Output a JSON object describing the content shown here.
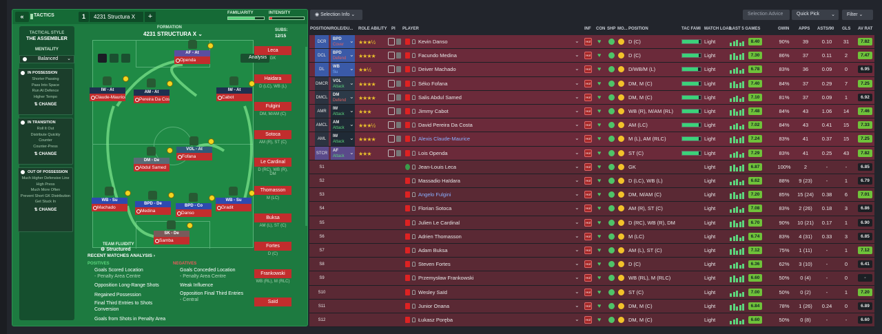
{
  "tabs": {
    "back": "«",
    "label": "TACTICS",
    "num": "1",
    "name": "4231 Structura X",
    "plus": "+"
  },
  "bars": {
    "familiarity": "FAMILIARITY",
    "intensity": "INTENSITY",
    "familiarity_level": 0.75,
    "intensity_level": 0.08
  },
  "sidebar": {
    "title": "TACTICAL STYLE",
    "style": "THE ASSEMBLER",
    "mentality_lbl": "MENTALITY",
    "mentality": "Balanced",
    "in_possession": {
      "head": "IN POSSESSION",
      "items": [
        "Shorter Passing",
        "Pass Into Space",
        "Run At Defence",
        "Higher Tempo"
      ],
      "change": "CHANGE"
    },
    "in_transition": {
      "head": "IN TRANSITION",
      "items": [
        "Roll It Out",
        "Distribute Quickly",
        "Counter",
        "Counter-Press"
      ],
      "change": "CHANGE"
    },
    "out_possession": {
      "head": "OUT OF POSSESSION",
      "items": [
        "Much Higher Defensive Line",
        "High Press",
        "Much More Often",
        "Prevent Short GK Distribution",
        "Get Stuck In"
      ],
      "change": "CHANGE"
    }
  },
  "formation": {
    "lbl": "FORMATION",
    "name": "4231 STRUCTURA X",
    "subs_lbl": "SUBS:",
    "subs": "12/15",
    "analysis": "Analysis",
    "fluidity_lbl": "TEAM FLUIDITY",
    "fluidity": "Structured"
  },
  "pitch_players": [
    {
      "role": "AF - At",
      "name": "Openda"
    },
    {
      "role": "IW - At",
      "name": "Claude-Maurice"
    },
    {
      "role": "AM - At",
      "name": "Pereira Da Costa"
    },
    {
      "role": "IW - At",
      "name": "Cabot"
    },
    {
      "role": "DM - De",
      "name": "Abdul Samed"
    },
    {
      "role": "VOL - At",
      "name": "Fofana"
    },
    {
      "role": "WB - Su",
      "name": "Machado"
    },
    {
      "role": "BPD - De",
      "name": "Medina"
    },
    {
      "role": "BPD - Co",
      "name": "Danso"
    },
    {
      "role": "WB - Su",
      "name": "Gradit"
    },
    {
      "role": "SK - De",
      "name": "Samba"
    }
  ],
  "subs": [
    {
      "name": "Leca",
      "pos": "GK"
    },
    {
      "name": "Haidara",
      "pos": "D (LC), WB (L)"
    },
    {
      "name": "Fulgini",
      "pos": "DM, M/AM (C)"
    },
    {
      "name": "Sotoca",
      "pos": "AM (R), ST (C)"
    },
    {
      "name": "Le Cardinal",
      "pos": "D (RC), WB (R), DM"
    },
    {
      "name": "Thomasson",
      "pos": "M (LC)"
    },
    {
      "name": "Buksa",
      "pos": "AM (L), ST (C)"
    },
    {
      "name": "Fortes",
      "pos": "D (C)"
    },
    {
      "name": "Frankowski",
      "pos": "WB (RL), M (RLC)"
    },
    {
      "name": "Saïd",
      "pos": ""
    }
  ],
  "analysis": {
    "title": "RECENT MATCHES ANALYSIS ›",
    "pos_lbl": "POSITIVES",
    "neg_lbl": "NEGATIVES",
    "positives": [
      {
        "t": "Goals Scored Location",
        "s": "- Penalty Area Centre"
      },
      {
        "t": "Opposition Long-Range Shots",
        "s": ""
      },
      {
        "t": "Regained Possession",
        "s": ""
      },
      {
        "t": "Final Third Entries to Shots Conversion",
        "s": ""
      },
      {
        "t": "Goals from Shots in Penalty Area",
        "s": ""
      }
    ],
    "negatives": [
      {
        "t": "Goals Conceded Location",
        "s": "- Penalty Area Centre"
      },
      {
        "t": "Weak Influence",
        "s": ""
      },
      {
        "t": "Opposition Final Third Entries",
        "s": "- Central"
      }
    ]
  },
  "toolbar": {
    "selection_info": "Selection Info",
    "selection_advice": "Selection Advice",
    "quick_pick": "Quick Pick",
    "filter": "Filter"
  },
  "columns": {
    "pos": "POSITION/ROLE/DU...",
    "role_ability": "ROLE ABILITY",
    "pi": "PI",
    "player": "PLAYER",
    "inf": "INF",
    "con": "CON",
    "shp": "SHP",
    "mo": "MO...",
    "position": "POSITION",
    "tac": "TAC FAMI",
    "ml": "MATCH LOAD",
    "l5": "LAST 5 GAMES",
    "gwin": "GWIN",
    "apps": "APPS",
    "asts": "ASTS/90",
    "gls": "GLS",
    "avr": "AV RAT"
  },
  "rows": [
    {
      "pos": "DCR",
      "role": "BPD",
      "duty": "Cover",
      "stars": "★★★½",
      "name": "Kevin Danso",
      "p": "D (C)",
      "ml": "Light",
      "form": "8.40",
      "gwin": "90%",
      "apps": "39",
      "asts": "0.10",
      "gls": "31",
      "avr": "7.82",
      "fam": 0.9
    },
    {
      "pos": "DCL",
      "role": "BPD",
      "duty": "Defend",
      "stars": "★★★★",
      "name": "Facundo Medina",
      "p": "D (C)",
      "ml": "Light",
      "form": "7.30",
      "gwin": "86%",
      "apps": "37",
      "asts": "0.11",
      "gls": "2",
      "avr": "7.47",
      "fam": 0.9
    },
    {
      "pos": "DL",
      "role": "WB",
      "duty": "Su",
      "stars": "★★½",
      "name": "Deiver Machado",
      "p": "D/WB/M (L)",
      "ml": "Light",
      "form": "6.78",
      "gwin": "83%",
      "apps": "36",
      "asts": "0.09",
      "gls": "0",
      "avr": "6.95",
      "fam": 0.85
    },
    {
      "pos": "DMCR",
      "role": "VOL",
      "duty": "Attack",
      "stars": "★★★★",
      "name": "Séko Fofana",
      "p": "DM, M (C)",
      "ml": "Light",
      "form": "7.40",
      "gwin": "84%",
      "apps": "37",
      "asts": "0.29",
      "gls": "7",
      "avr": "7.25",
      "fam": 0.9
    },
    {
      "pos": "DMCL",
      "role": "DM",
      "duty": "Defend",
      "stars": "★★★★",
      "name": "Salis Abdul Samed",
      "p": "DM, M (C)",
      "ml": "Light",
      "form": "7.10",
      "gwin": "81%",
      "apps": "37",
      "asts": "0.09",
      "gls": "1",
      "avr": "6.92",
      "fam": 0.9
    },
    {
      "pos": "AMR",
      "role": "IW",
      "duty": "Attack",
      "stars": "★★★",
      "name": "Jimmy Cabot",
      "p": "WB (R), M/AM (RL)",
      "ml": "Light",
      "form": "7.48",
      "gwin": "84%",
      "apps": "43",
      "asts": "1.06",
      "gls": "14",
      "avr": "7.46",
      "fam": 0.9
    },
    {
      "pos": "AMCL",
      "role": "AM",
      "duty": "Attack",
      "stars": "★★★½",
      "name": "David Pereira Da Costa",
      "p": "AM (LC)",
      "ml": "Light",
      "form": "7.02",
      "gwin": "84%",
      "apps": "43",
      "asts": "0.41",
      "gls": "15",
      "avr": "7.33",
      "fam": 0.9
    },
    {
      "pos": "AML",
      "role": "IW",
      "duty": "Attack",
      "stars": "★★★★",
      "name": "Alexis Claude-Maurice",
      "p": "M (L), AM (RLC)",
      "ml": "Light",
      "form": "7.24",
      "gwin": "83%",
      "apps": "41",
      "asts": "0.37",
      "gls": "15",
      "avr": "7.25",
      "fam": 0.9
    },
    {
      "pos": "STCR",
      "role": "AF",
      "duty": "Attack",
      "stars": "★★★",
      "name": "Lois Openda",
      "p": "ST (C)",
      "ml": "Light",
      "form": "7.29",
      "gwin": "83%",
      "apps": "41",
      "asts": "0.25",
      "gls": "43",
      "avr": "7.82",
      "fam": 0.9
    },
    {
      "pos": "S1",
      "name": "Jean-Louis Leca",
      "p": "GK",
      "ml": "Light",
      "form": "6.87",
      "gwin": "100%",
      "apps": "2",
      "asts": "-",
      "gls": "-",
      "avr": "6.85"
    },
    {
      "pos": "S2",
      "name": "Massadio Haïdara",
      "p": "D (LC), WB (L)",
      "ml": "Light",
      "form": "6.62",
      "gwin": "88%",
      "apps": "9 (23)",
      "asts": "-",
      "gls": "1",
      "avr": "6.79"
    },
    {
      "pos": "S3",
      "name": "Angelo Fulgini",
      "p": "DM, M/AM (C)",
      "ml": "Light",
      "form": "7.20",
      "gwin": "85%",
      "apps": "15 (24)",
      "asts": "0.38",
      "gls": "6",
      "avr": "7.01"
    },
    {
      "pos": "S4",
      "name": "Florian Sotoca",
      "p": "AM (R), ST (C)",
      "ml": "Light",
      "form": "7.08",
      "gwin": "83%",
      "apps": "2 (26)",
      "asts": "0.18",
      "gls": "3",
      "avr": "6.86"
    },
    {
      "pos": "S5",
      "name": "Julien Le Cardinal",
      "p": "D (RC), WB (R), DM",
      "ml": "Light",
      "form": "6.70",
      "gwin": "90%",
      "apps": "10 (21)",
      "asts": "0.17",
      "gls": "1",
      "avr": "6.90"
    },
    {
      "pos": "S6",
      "name": "Adrien Thomasson",
      "p": "M (LC)",
      "ml": "Light",
      "form": "6.74",
      "gwin": "83%",
      "apps": "4 (31)",
      "asts": "0.33",
      "gls": "3",
      "avr": "6.85"
    },
    {
      "pos": "S7",
      "name": "Adam Buksa",
      "p": "AM (L), ST (C)",
      "ml": "Light",
      "form": "7.12",
      "gwin": "75%",
      "apps": "1 (11)",
      "asts": "-",
      "gls": "1",
      "avr": "7.12"
    },
    {
      "pos": "S8",
      "name": "Steven Fortes",
      "p": "D (C)",
      "ml": "Light",
      "form": "6.36",
      "gwin": "62%",
      "apps": "3 (10)",
      "asts": "-",
      "gls": "0",
      "avr": "6.41"
    },
    {
      "pos": "S9",
      "name": "Przemysław Frankowski",
      "p": "WB (RL), M (RLC)",
      "ml": "Light",
      "form": "6.60",
      "gwin": "50%",
      "apps": "0 (4)",
      "asts": "-",
      "gls": "0",
      "avr": "-"
    },
    {
      "pos": "S10",
      "name": "Wesley Saïd",
      "p": "ST (C)",
      "ml": "Light",
      "form": "7.00",
      "gwin": "50%",
      "apps": "0 (2)",
      "asts": "-",
      "gls": "1",
      "avr": "7.20"
    },
    {
      "pos": "S11",
      "name": "Junior Onana",
      "p": "DM, M (C)",
      "ml": "Light",
      "form": "6.84",
      "gwin": "78%",
      "apps": "1 (26)",
      "asts": "0.24",
      "gls": "0",
      "avr": "6.89"
    },
    {
      "pos": "S12",
      "name": "Łukasz Poręba",
      "p": "DM, M (C)",
      "ml": "Light",
      "form": "6.60",
      "gwin": "50%",
      "apps": "0 (8)",
      "asts": "-",
      "gls": "-",
      "avr": "6.60"
    }
  ]
}
